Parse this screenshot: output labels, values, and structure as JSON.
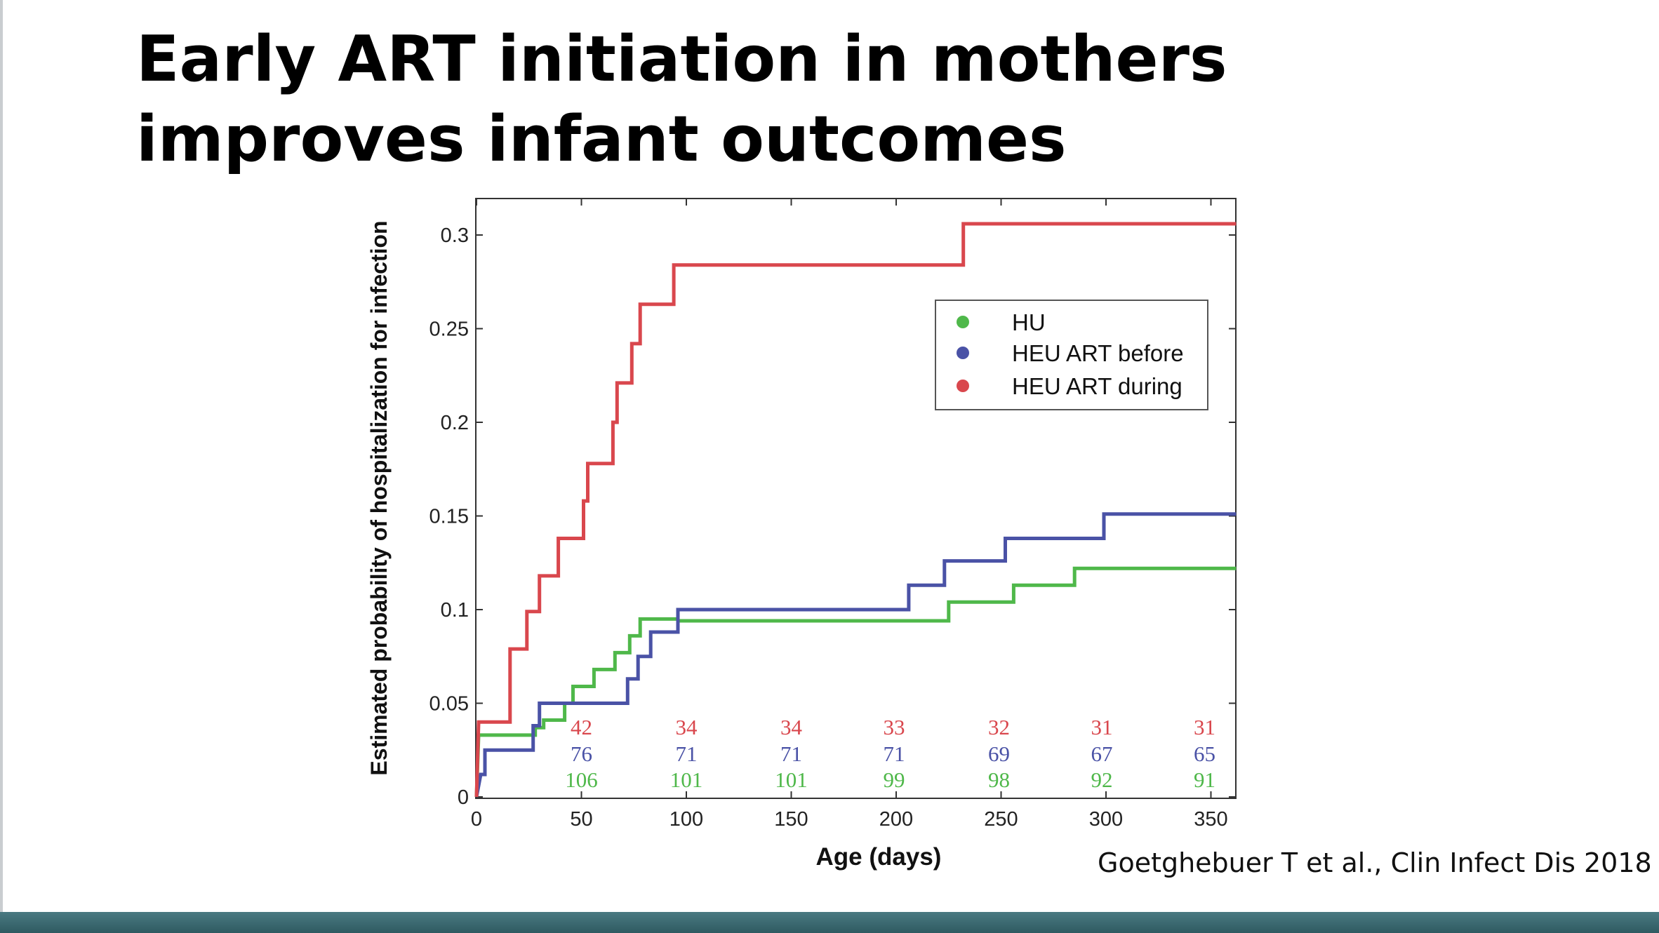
{
  "slide": {
    "title": "Early ART initiation in mothers improves infant outcomes",
    "citation": "Goetghebuer T et al., Clin Infect Dis 2018"
  },
  "chart_data": {
    "type": "line",
    "step": true,
    "xlabel": "Age (days)",
    "ylabel": "Estimated probability of hospitalization for infection",
    "xlim": [
      0,
      362
    ],
    "ylim": [
      0,
      0.32
    ],
    "xticks": [
      "0",
      "50",
      "100",
      "150",
      "200",
      "250",
      "300",
      "350"
    ],
    "yticks": [
      "0",
      "0.05",
      "0.1",
      "0.15",
      "0.2",
      "0.25",
      "0.3"
    ],
    "legend_position": "upper-right",
    "series": [
      {
        "name": "HU",
        "color": "#4fb84a",
        "points": [
          [
            0,
            0
          ],
          [
            1,
            0.033
          ],
          [
            28,
            0.033
          ],
          [
            28,
            0.037
          ],
          [
            32,
            0.037
          ],
          [
            32,
            0.041
          ],
          [
            42,
            0.041
          ],
          [
            42,
            0.05
          ],
          [
            46,
            0.05
          ],
          [
            46,
            0.059
          ],
          [
            56,
            0.059
          ],
          [
            56,
            0.068
          ],
          [
            66,
            0.068
          ],
          [
            66,
            0.077
          ],
          [
            73,
            0.077
          ],
          [
            73,
            0.086
          ],
          [
            78,
            0.086
          ],
          [
            78,
            0.095
          ],
          [
            96,
            0.095
          ],
          [
            96,
            0.094
          ],
          [
            225,
            0.094
          ],
          [
            225,
            0.104
          ],
          [
            256,
            0.104
          ],
          [
            256,
            0.113
          ],
          [
            285,
            0.113
          ],
          [
            285,
            0.122
          ],
          [
            362,
            0.122
          ]
        ]
      },
      {
        "name": "HEU ART before",
        "color": "#4a52a6",
        "points": [
          [
            0,
            0
          ],
          [
            2,
            0.012
          ],
          [
            4,
            0.012
          ],
          [
            4,
            0.025
          ],
          [
            27,
            0.025
          ],
          [
            27,
            0.038
          ],
          [
            30,
            0.038
          ],
          [
            30,
            0.05
          ],
          [
            72,
            0.05
          ],
          [
            72,
            0.063
          ],
          [
            77,
            0.063
          ],
          [
            77,
            0.075
          ],
          [
            83,
            0.075
          ],
          [
            83,
            0.088
          ],
          [
            96,
            0.088
          ],
          [
            96,
            0.1
          ],
          [
            206,
            0.1
          ],
          [
            206,
            0.113
          ],
          [
            223,
            0.113
          ],
          [
            223,
            0.126
          ],
          [
            252,
            0.126
          ],
          [
            252,
            0.138
          ],
          [
            299,
            0.138
          ],
          [
            299,
            0.151
          ],
          [
            362,
            0.151
          ]
        ]
      },
      {
        "name": "HEU ART during",
        "color": "#d9474d",
        "points": [
          [
            0,
            0
          ],
          [
            1,
            0.04
          ],
          [
            16,
            0.04
          ],
          [
            16,
            0.079
          ],
          [
            24,
            0.079
          ],
          [
            24,
            0.099
          ],
          [
            30,
            0.099
          ],
          [
            30,
            0.118
          ],
          [
            39,
            0.118
          ],
          [
            39,
            0.138
          ],
          [
            51,
            0.138
          ],
          [
            51,
            0.158
          ],
          [
            53,
            0.158
          ],
          [
            53,
            0.178
          ],
          [
            65,
            0.178
          ],
          [
            65,
            0.2
          ],
          [
            67,
            0.2
          ],
          [
            67,
            0.221
          ],
          [
            74,
            0.221
          ],
          [
            74,
            0.242
          ],
          [
            78,
            0.242
          ],
          [
            78,
            0.263
          ],
          [
            94,
            0.263
          ],
          [
            94,
            0.284
          ],
          [
            232,
            0.284
          ],
          [
            232,
            0.306
          ],
          [
            362,
            0.306
          ]
        ]
      }
    ],
    "at_risk": {
      "x": [
        50,
        100,
        150,
        199,
        249,
        298,
        347
      ],
      "rows": [
        {
          "series": "HEU ART during",
          "color": "#d9474d",
          "values": [
            "42",
            "34",
            "34",
            "33",
            "32",
            "31",
            "31"
          ]
        },
        {
          "series": "HEU ART before",
          "color": "#4a52a6",
          "values": [
            "76",
            "71",
            "71",
            "71",
            "69",
            "67",
            "65"
          ]
        },
        {
          "series": "HU",
          "color": "#4fb84a",
          "values": [
            "106",
            "101",
            "101",
            "99",
            "98",
            "92",
            "91"
          ]
        }
      ]
    }
  }
}
